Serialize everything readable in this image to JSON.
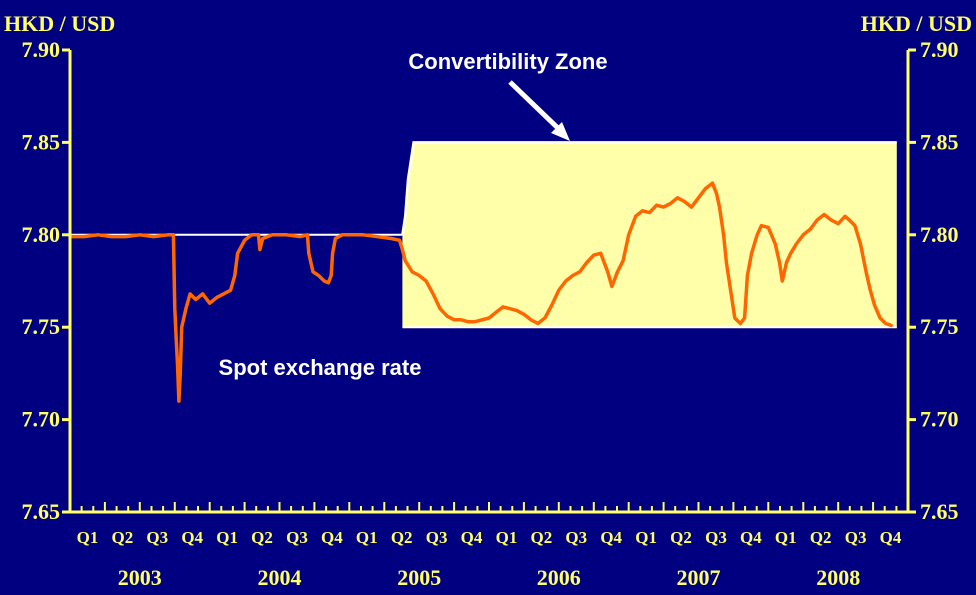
{
  "chart_data": {
    "type": "line",
    "title": "",
    "y_unit_left": "HKD / USD",
    "y_unit_right": "HKD / USD",
    "ylim": [
      7.65,
      7.9
    ],
    "y_ticks": [
      "7.90",
      "7.85",
      "7.80",
      "7.75",
      "7.70",
      "7.65"
    ],
    "quarters": [
      "Q1",
      "Q2",
      "Q3",
      "Q4",
      "Q1",
      "Q2",
      "Q3",
      "Q4",
      "Q1",
      "Q2",
      "Q3",
      "Q4",
      "Q1",
      "Q2",
      "Q3",
      "Q4",
      "Q1",
      "Q2",
      "Q3",
      "Q4",
      "Q1",
      "Q2",
      "Q3",
      "Q4"
    ],
    "years": [
      "2003",
      "2004",
      "2005",
      "2006",
      "2007",
      "2008"
    ],
    "grid": false,
    "colors": {
      "background": "#000080",
      "axis": "#FFFF66",
      "spot_line": "#FF6600",
      "zone_fill": "#FFFFAA",
      "zone_edge": "#FFFFFF",
      "text_white": "#FFFFFF"
    },
    "annotations": {
      "zone": "Convertibility Zone",
      "spot": "Spot exchange rate"
    },
    "pre_reform_peg": {
      "value": 7.8,
      "x_start": 2003.0,
      "x_end": 2005.38
    },
    "convertibility_zone": [
      {
        "x": 2005.38,
        "strong_side": 7.8,
        "weak_side": 7.75
      },
      {
        "x": 2005.4,
        "strong_side": 7.81,
        "weak_side": 7.75
      },
      {
        "x": 2005.42,
        "strong_side": 7.83,
        "weak_side": 7.75
      },
      {
        "x": 2005.44,
        "strong_side": 7.84,
        "weak_side": 7.75
      },
      {
        "x": 2005.46,
        "strong_side": 7.85,
        "weak_side": 7.75
      },
      {
        "x": 2008.92,
        "strong_side": 7.85,
        "weak_side": 7.75
      }
    ],
    "series": [
      {
        "name": "Spot exchange rate",
        "points": [
          [
            2003.0,
            7.799
          ],
          [
            2003.1,
            7.799
          ],
          [
            2003.2,
            7.8
          ],
          [
            2003.3,
            7.799
          ],
          [
            2003.4,
            7.799
          ],
          [
            2003.5,
            7.8
          ],
          [
            2003.6,
            7.799
          ],
          [
            2003.7,
            7.8
          ],
          [
            2003.74,
            7.8
          ],
          [
            2003.75,
            7.76
          ],
          [
            2003.76,
            7.745
          ],
          [
            2003.77,
            7.73
          ],
          [
            2003.78,
            7.71
          ],
          [
            2003.79,
            7.725
          ],
          [
            2003.8,
            7.75
          ],
          [
            2003.83,
            7.76
          ],
          [
            2003.86,
            7.768
          ],
          [
            2003.9,
            7.765
          ],
          [
            2003.95,
            7.768
          ],
          [
            2004.0,
            7.763
          ],
          [
            2004.05,
            7.766
          ],
          [
            2004.1,
            7.768
          ],
          [
            2004.15,
            7.77
          ],
          [
            2004.18,
            7.778
          ],
          [
            2004.2,
            7.79
          ],
          [
            2004.25,
            7.797
          ],
          [
            2004.3,
            7.8
          ],
          [
            2004.35,
            7.8
          ],
          [
            2004.36,
            7.792
          ],
          [
            2004.38,
            7.798
          ],
          [
            2004.45,
            7.8
          ],
          [
            2004.55,
            7.8
          ],
          [
            2004.65,
            7.799
          ],
          [
            2004.7,
            7.8
          ],
          [
            2004.71,
            7.79
          ],
          [
            2004.74,
            7.78
          ],
          [
            2004.78,
            7.778
          ],
          [
            2004.82,
            7.775
          ],
          [
            2004.85,
            7.774
          ],
          [
            2004.87,
            7.778
          ],
          [
            2004.88,
            7.79
          ],
          [
            2004.9,
            7.798
          ],
          [
            2004.95,
            7.8
          ],
          [
            2005.1,
            7.8
          ],
          [
            2005.2,
            7.799
          ],
          [
            2005.3,
            7.798
          ],
          [
            2005.36,
            7.797
          ],
          [
            2005.38,
            7.792
          ],
          [
            2005.4,
            7.786
          ],
          [
            2005.45,
            7.78
          ],
          [
            2005.5,
            7.778
          ],
          [
            2005.55,
            7.775
          ],
          [
            2005.6,
            7.768
          ],
          [
            2005.65,
            7.76
          ],
          [
            2005.7,
            7.756
          ],
          [
            2005.75,
            7.754
          ],
          [
            2005.8,
            7.754
          ],
          [
            2005.85,
            7.753
          ],
          [
            2005.9,
            7.753
          ],
          [
            2005.95,
            7.754
          ],
          [
            2006.0,
            7.755
          ],
          [
            2006.05,
            7.758
          ],
          [
            2006.1,
            7.761
          ],
          [
            2006.15,
            7.76
          ],
          [
            2006.2,
            7.759
          ],
          [
            2006.25,
            7.757
          ],
          [
            2006.3,
            7.754
          ],
          [
            2006.35,
            7.752
          ],
          [
            2006.4,
            7.755
          ],
          [
            2006.45,
            7.762
          ],
          [
            2006.5,
            7.77
          ],
          [
            2006.55,
            7.775
          ],
          [
            2006.6,
            7.778
          ],
          [
            2006.65,
            7.78
          ],
          [
            2006.7,
            7.785
          ],
          [
            2006.75,
            7.789
          ],
          [
            2006.8,
            7.79
          ],
          [
            2006.85,
            7.78
          ],
          [
            2006.88,
            7.772
          ],
          [
            2006.92,
            7.78
          ],
          [
            2006.96,
            7.786
          ],
          [
            2007.0,
            7.8
          ],
          [
            2007.05,
            7.81
          ],
          [
            2007.1,
            7.813
          ],
          [
            2007.15,
            7.812
          ],
          [
            2007.2,
            7.816
          ],
          [
            2007.25,
            7.815
          ],
          [
            2007.3,
            7.817
          ],
          [
            2007.35,
            7.82
          ],
          [
            2007.4,
            7.818
          ],
          [
            2007.45,
            7.815
          ],
          [
            2007.5,
            7.82
          ],
          [
            2007.55,
            7.825
          ],
          [
            2007.6,
            7.828
          ],
          [
            2007.63,
            7.822
          ],
          [
            2007.65,
            7.815
          ],
          [
            2007.68,
            7.8
          ],
          [
            2007.7,
            7.785
          ],
          [
            2007.73,
            7.77
          ],
          [
            2007.76,
            7.755
          ],
          [
            2007.8,
            7.752
          ],
          [
            2007.83,
            7.755
          ],
          [
            2007.85,
            7.778
          ],
          [
            2007.88,
            7.79
          ],
          [
            2007.92,
            7.8
          ],
          [
            2007.95,
            7.805
          ],
          [
            2008.0,
            7.804
          ],
          [
            2008.05,
            7.795
          ],
          [
            2008.08,
            7.785
          ],
          [
            2008.1,
            7.775
          ],
          [
            2008.13,
            7.785
          ],
          [
            2008.16,
            7.79
          ],
          [
            2008.2,
            7.795
          ],
          [
            2008.25,
            7.8
          ],
          [
            2008.3,
            7.803
          ],
          [
            2008.35,
            7.808
          ],
          [
            2008.4,
            7.811
          ],
          [
            2008.45,
            7.808
          ],
          [
            2008.5,
            7.806
          ],
          [
            2008.55,
            7.81
          ],
          [
            2008.58,
            7.808
          ],
          [
            2008.62,
            7.805
          ],
          [
            2008.66,
            7.795
          ],
          [
            2008.7,
            7.78
          ],
          [
            2008.73,
            7.77
          ],
          [
            2008.76,
            7.762
          ],
          [
            2008.8,
            7.755
          ],
          [
            2008.84,
            7.752
          ],
          [
            2008.88,
            7.751
          ]
        ]
      }
    ]
  }
}
